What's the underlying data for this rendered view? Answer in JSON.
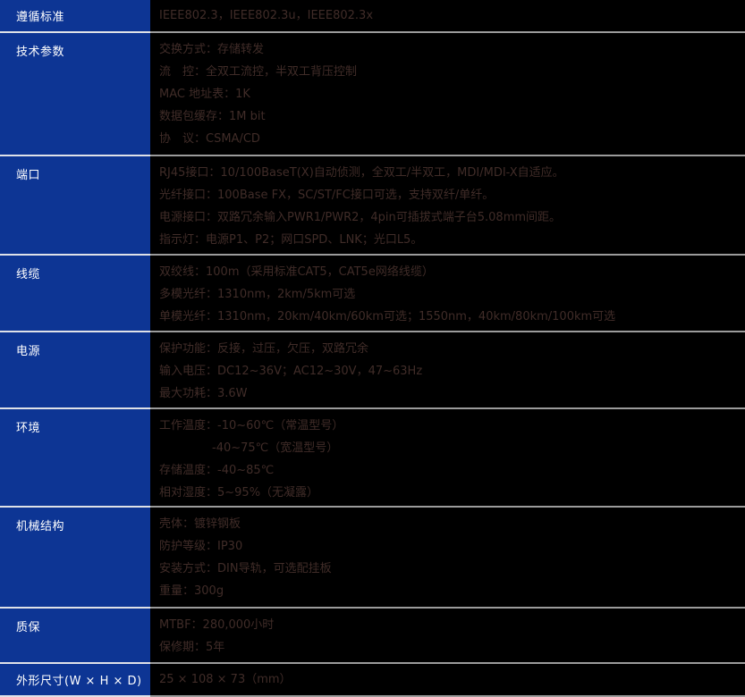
{
  "colors": {
    "label_background": "#0d3594",
    "label_text": "#ffffff",
    "value_background": "#000000",
    "value_text": "#402c28",
    "divider_left": "#dfe2e8",
    "divider_right": "#9b9b9b"
  },
  "table": {
    "rows": [
      {
        "label": "遵循标准",
        "lines": [
          "IEEE802.3，IEEE802.3u，IEEE802.3x"
        ]
      },
      {
        "label": "技术参数",
        "lines": [
          "交换方式：存储转发",
          "流　控：全双工流控，半双工背压控制",
          "MAC 地址表：1K",
          "数据包缓存：1M bit",
          "协　议：CSMA/CD"
        ]
      },
      {
        "label": "端口",
        "lines": [
          "RJ45接口：10/100BaseT(X)自动侦测，全双工/半双工，MDI/MDI-X自适应。",
          "光纤接口：100Base FX，SC/ST/FC接口可选，支持双纤/单纤。",
          "电源接口：双路冗余输入PWR1/PWR2，4pin可插拔式端子台5.08mm间距。",
          "指示灯：电源P1、P2；网口SPD、LNK；光口L5。"
        ]
      },
      {
        "label": "线缆",
        "lines": [
          "双绞线：100m（采用标准CAT5，CAT5e网络线缆）",
          "多模光纤：1310nm，2km/5km可选",
          "单模光纤：1310nm，20km/40km/60km可选；1550nm，40km/80km/100km可选"
        ]
      },
      {
        "label": "电源",
        "lines": [
          "保护功能：反接，过压，欠压，双路冗余",
          "输入电压：DC12~36V；AC12~30V，47~63Hz",
          "最大功耗：3.6W"
        ]
      },
      {
        "label": "环境",
        "lines": [
          "工作温度：-10~60℃（常温型号）",
          "-40~75℃（宽温型号）",
          "存储温度：-40~85℃",
          "相对湿度：5~95%（无凝露）"
        ]
      },
      {
        "label": "机械结构",
        "lines": [
          "壳体：镀锌钢板",
          "防护等级：IP30",
          "安装方式：DIN导轨，可选配挂板",
          "重量：300g"
        ]
      },
      {
        "label": "质保",
        "lines": [
          "MTBF：280,000小时",
          "保修期：5年"
        ]
      },
      {
        "label": "外形尺寸(W × H × D)",
        "lines": [
          "25 × 108 × 73（mm）"
        ]
      }
    ]
  }
}
